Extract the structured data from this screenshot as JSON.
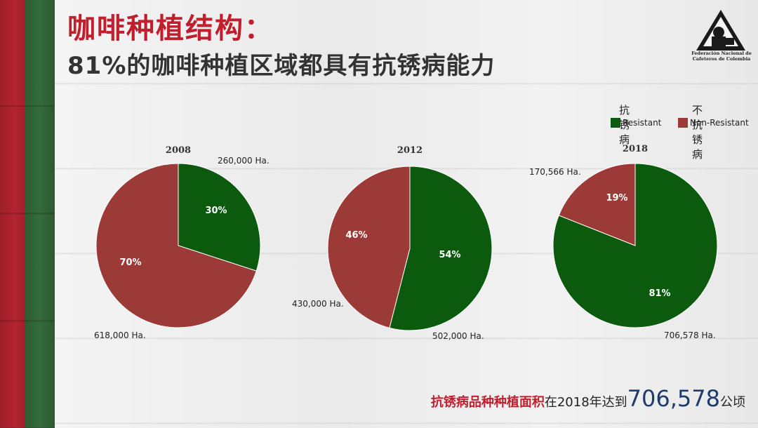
{
  "header": {
    "title": "咖啡种植结构：",
    "subtitle": "81%的咖啡种植区域都具有抗锈病能力"
  },
  "logo": {
    "text_line1": "Federación Nacional de",
    "text_line2": "Cafeteros de Colombia"
  },
  "legend": {
    "resistant_cn": "抗锈病",
    "resistant_en": "Resistant",
    "nonresistant_cn": "不抗锈病",
    "nonresistant_en": "Non-Resistant"
  },
  "colors": {
    "resistant": "#0b5a0e",
    "nonresistant": "#9c3a38",
    "title_red": "#c0202e"
  },
  "chart_data": [
    {
      "type": "pie",
      "title": "2008",
      "categories": [
        "Resistant",
        "Non-Resistant"
      ],
      "values": [
        30,
        70
      ],
      "labels": [
        "30%",
        "70%"
      ],
      "annotations": [
        "260,000 Ha.",
        "618,000 Ha."
      ]
    },
    {
      "type": "pie",
      "title": "2012",
      "categories": [
        "Resistant",
        "Non-Resistant"
      ],
      "values": [
        54,
        46
      ],
      "labels": [
        "54%",
        "46%"
      ],
      "annotations": [
        "502,000 Ha.",
        "430,000 Ha."
      ]
    },
    {
      "type": "pie",
      "title": "2018",
      "categories": [
        "Resistant",
        "Non-Resistant"
      ],
      "values": [
        81,
        19
      ],
      "labels": [
        "81%",
        "19%"
      ],
      "annotations": [
        "706,578 Ha.",
        "170,566 Ha."
      ]
    }
  ],
  "footer": {
    "highlight": "抗锈病品种种植面积",
    "middle": "在2018年达到",
    "number": "706,578",
    "unit": "公顷"
  }
}
